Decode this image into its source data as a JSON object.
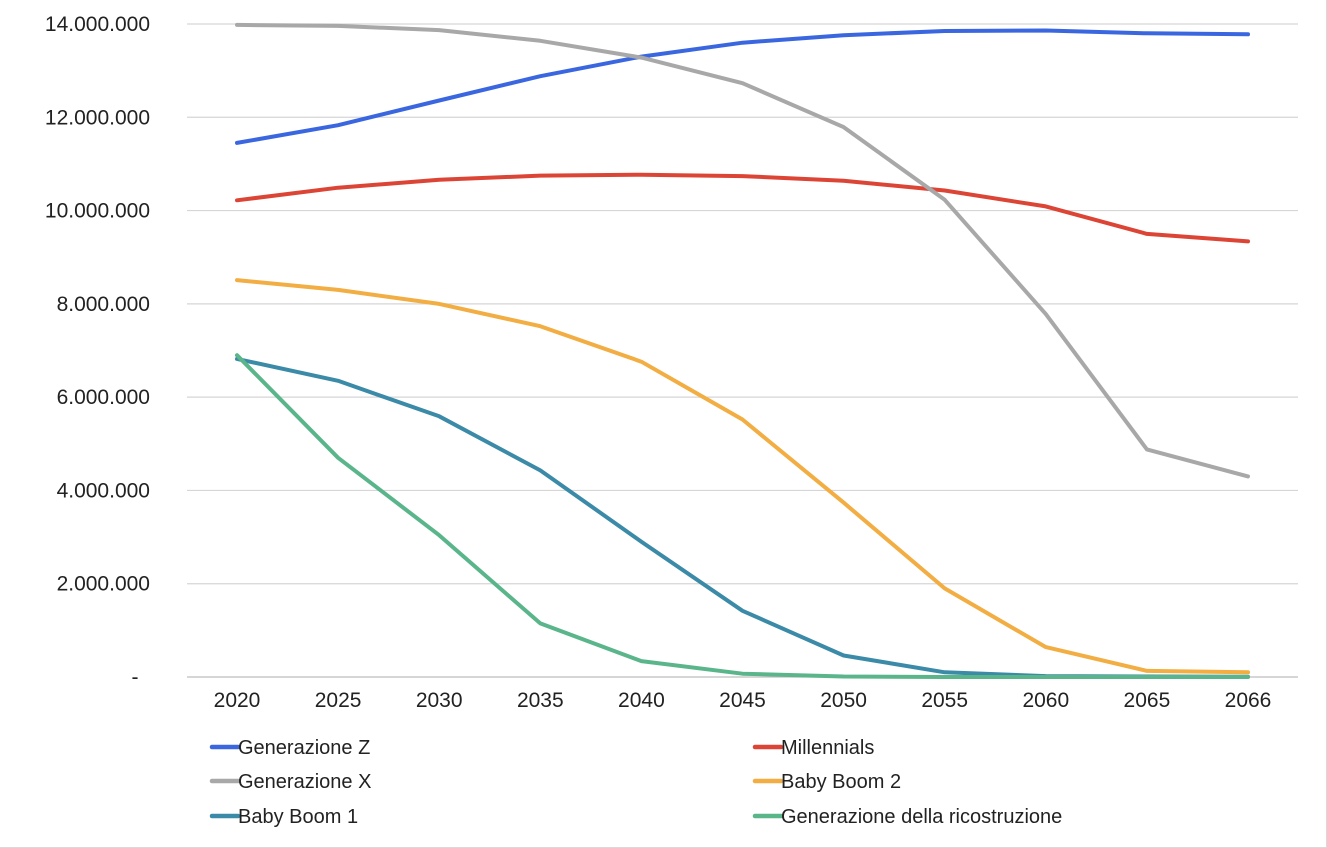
{
  "chart_data": {
    "type": "line",
    "title": "",
    "xlabel": "",
    "ylabel": "",
    "x": [
      "2020",
      "2025",
      "2030",
      "2035",
      "2040",
      "2045",
      "2050",
      "2055",
      "2060",
      "2065",
      "2066"
    ],
    "ylim": [
      0,
      14000000
    ],
    "y_ticks": [
      {
        "value": 0,
        "label": "-"
      },
      {
        "value": 2000000,
        "label": "2.000.000"
      },
      {
        "value": 4000000,
        "label": "4.000.000"
      },
      {
        "value": 6000000,
        "label": "6.000.000"
      },
      {
        "value": 8000000,
        "label": "8.000.000"
      },
      {
        "value": 10000000,
        "label": "10.000.000"
      },
      {
        "value": 12000000,
        "label": "12.000.000"
      },
      {
        "value": 14000000,
        "label": "14.000.000"
      }
    ],
    "grid": true,
    "legend_position": "bottom",
    "series": [
      {
        "name": "Generazione Z",
        "color": "#3a67e0",
        "values": [
          11450000,
          11830000,
          12360000,
          12880000,
          13300000,
          13600000,
          13760000,
          13850000,
          13860000,
          13800000,
          13780000
        ]
      },
      {
        "name": "Millennials",
        "color": "#dc4535",
        "values": [
          10220000,
          10490000,
          10660000,
          10750000,
          10770000,
          10740000,
          10640000,
          10430000,
          10090000,
          9500000,
          9340000
        ]
      },
      {
        "name": "Generazione X",
        "color": "#a8a8a8",
        "values": [
          13980000,
          13960000,
          13870000,
          13640000,
          13280000,
          12730000,
          11790000,
          10230000,
          7780000,
          4880000,
          4300000
        ]
      },
      {
        "name": "Baby Boom 2",
        "color": "#f2ad43",
        "values": [
          8510000,
          8300000,
          8000000,
          7520000,
          6760000,
          5520000,
          3740000,
          1900000,
          640000,
          130000,
          100000
        ]
      },
      {
        "name": "Baby Boom 1",
        "color": "#3b8aa8",
        "values": [
          6820000,
          6350000,
          5590000,
          4430000,
          2900000,
          1420000,
          460000,
          100000,
          20000,
          10000,
          5000
        ]
      },
      {
        "name": "Generazione della ricostruzione",
        "color": "#5ab58b",
        "values": [
          6900000,
          4700000,
          3040000,
          1150000,
          340000,
          70000,
          10000,
          0,
          0,
          0,
          0
        ]
      }
    ]
  }
}
